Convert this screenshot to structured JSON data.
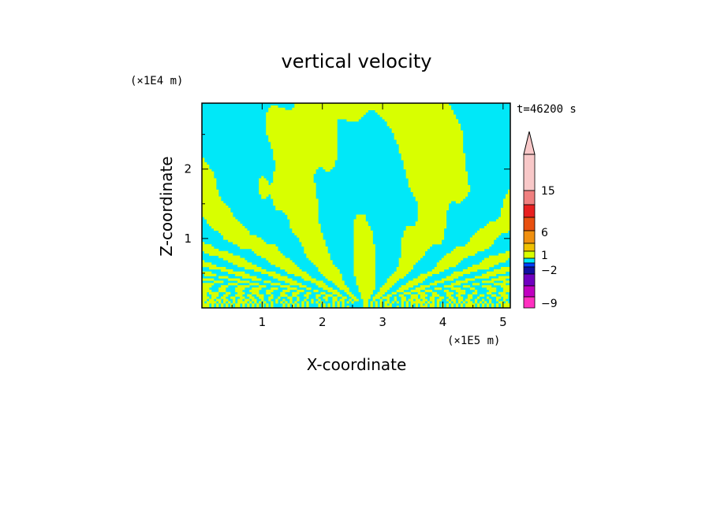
{
  "chart_data": {
    "type": "heatmap",
    "title": "vertical velocity",
    "xlabel": "X-coordinate",
    "ylabel": "Z-coordinate",
    "x_unit": "(×1E5 m)",
    "y_unit": "(×1E4 m)",
    "time_label": "t=46200 s",
    "x_ticks": [
      "1",
      "2",
      "3",
      "4",
      "5"
    ],
    "y_ticks": [
      "1",
      "2"
    ],
    "x_tick_values": [
      1,
      2,
      3,
      4,
      5
    ],
    "y_tick_values": [
      1,
      2
    ],
    "xlim": [
      0,
      5.12
    ],
    "ylim": [
      0,
      2.95
    ],
    "colorbar": {
      "labels": [
        "15",
        "6",
        "1",
        "-2",
        "-9"
      ],
      "label_levels": [
        15,
        6,
        1,
        -2,
        -9
      ],
      "extend": "max",
      "colors_top_to_bottom": [
        "#f8c8c8",
        "#f08080",
        "#e82020",
        "#e85010",
        "#f09010",
        "#f0c000",
        "#d8ff00",
        "#00e8f8",
        "#0040ff",
        "#1010a0",
        "#7000c0",
        "#c000c0",
        "#ff30c0"
      ]
    },
    "field_colors": {
      "positive": "#d8ff00",
      "negative": "#00e8f8"
    }
  }
}
